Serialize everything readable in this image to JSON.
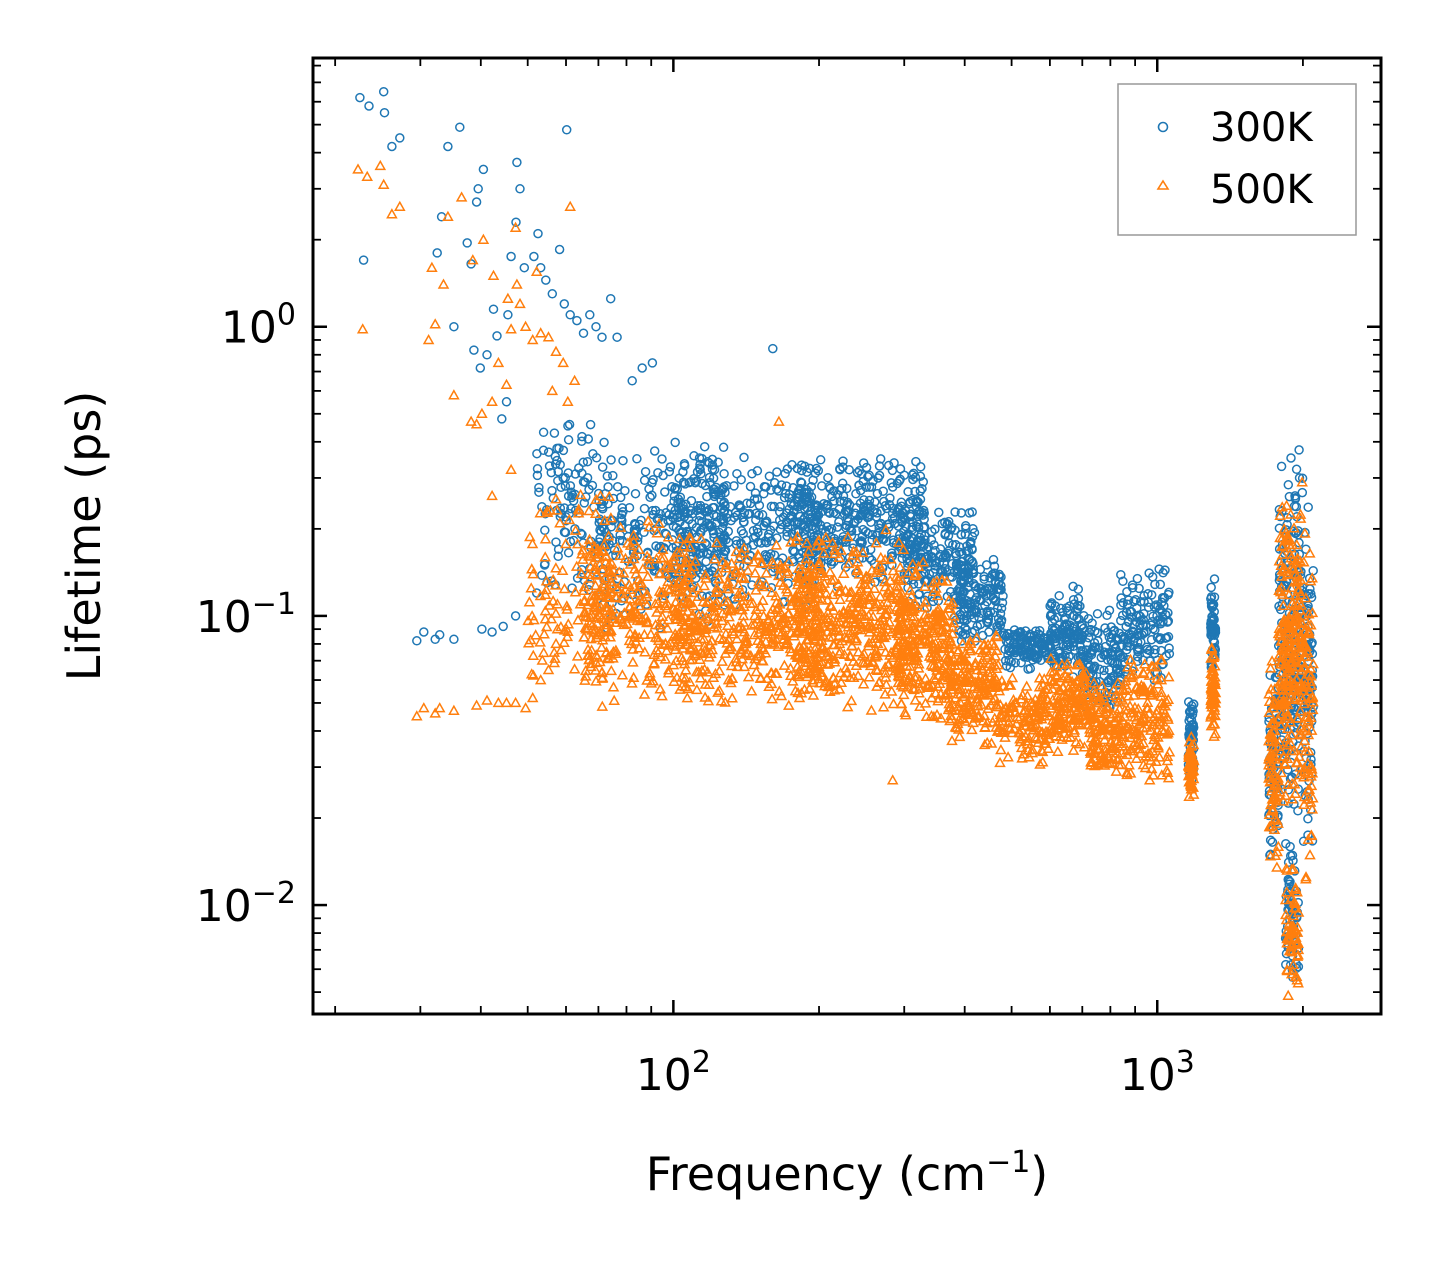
{
  "chart_data": {
    "type": "scatter",
    "title": "",
    "xlabel": "Frequency (cm",
    "xlabel_sup": "−1",
    "xlabel_tail": ")",
    "ylabel": "Lifetime (ps)",
    "xscale": "log",
    "yscale": "log",
    "xlim": [
      18,
      2900
    ],
    "ylim": [
      0.0042,
      8.5
    ],
    "x_ticks": [
      {
        "value": 100,
        "base": "10",
        "exp": "2"
      },
      {
        "value": 1000,
        "base": "10",
        "exp": "3"
      }
    ],
    "y_ticks": [
      {
        "value": 1,
        "base": "10",
        "exp": "0"
      },
      {
        "value": 0.1,
        "base": "10",
        "exp": "−1"
      },
      {
        "value": 0.01,
        "base": "10",
        "exp": "−2"
      }
    ],
    "legend_position": "top-right",
    "series": [
      {
        "name": "300K",
        "marker": "circle",
        "color": "#1f77b4",
        "outliers": [
          [
            22.5,
            6.2
          ],
          [
            23.5,
            5.8
          ],
          [
            25.2,
            6.5
          ],
          [
            25.3,
            5.5
          ],
          [
            26.2,
            4.2
          ],
          [
            27.2,
            4.5
          ],
          [
            22.9,
            1.7
          ],
          [
            29.5,
            0.082
          ],
          [
            30.5,
            0.088
          ],
          [
            32.2,
            0.083
          ],
          [
            32.9,
            0.086
          ],
          [
            35.2,
            0.083
          ],
          [
            34.2,
            4.2
          ],
          [
            36.2,
            4.9
          ],
          [
            33.2,
            2.4
          ],
          [
            32.5,
            1.8
          ],
          [
            35.2,
            1.0
          ],
          [
            37.5,
            1.95
          ],
          [
            38.2,
            1.65
          ],
          [
            39.5,
            3.0
          ],
          [
            40.5,
            3.5
          ],
          [
            39.2,
            2.7
          ],
          [
            42.5,
            1.15
          ],
          [
            43.2,
            0.93
          ],
          [
            38.7,
            0.83
          ],
          [
            41.2,
            0.8
          ],
          [
            39.9,
            0.72
          ],
          [
            45.5,
            1.1
          ],
          [
            46.2,
            1.75
          ],
          [
            47.5,
            3.7
          ],
          [
            48.2,
            3.0
          ],
          [
            47.3,
            2.3
          ],
          [
            44.2,
            0.48
          ],
          [
            45.2,
            0.55
          ],
          [
            49.2,
            1.6
          ],
          [
            51.5,
            1.75
          ],
          [
            52.5,
            2.1
          ],
          [
            53.2,
            1.6
          ],
          [
            54.5,
            1.45
          ],
          [
            56.2,
            1.3
          ],
          [
            58.2,
            1.85
          ],
          [
            60.2,
            4.8
          ],
          [
            59.5,
            1.2
          ],
          [
            61.2,
            1.1
          ],
          [
            63.2,
            1.05
          ],
          [
            65.2,
            0.95
          ],
          [
            67.2,
            1.1
          ],
          [
            69.2,
            1.0
          ],
          [
            71.2,
            0.92
          ],
          [
            74.2,
            1.25
          ],
          [
            76.5,
            0.92
          ],
          [
            82.2,
            0.65
          ],
          [
            86.2,
            0.72
          ],
          [
            90.5,
            0.75
          ],
          [
            160.5,
            0.84
          ],
          [
            40.2,
            0.09
          ],
          [
            42.2,
            0.088
          ],
          [
            44.5,
            0.092
          ],
          [
            47.2,
            0.1
          ],
          [
            52.2,
            0.12
          ],
          [
            54.2,
            0.15
          ],
          [
            57.2,
            0.18
          ],
          [
            62.2,
            0.25
          ],
          [
            66.5,
            0.3
          ]
        ],
        "bands": [
          {
            "x": [
              52,
              72
            ],
            "y": [
              0.1,
              0.55
            ],
            "n": 110
          },
          {
            "x": [
              70,
              130
            ],
            "y": [
              0.09,
              0.42
            ],
            "n": 260
          },
          {
            "x": [
              100,
              200
            ],
            "y": [
              0.1,
              0.38
            ],
            "n": 340
          },
          {
            "x": [
              180,
              330
            ],
            "y": [
              0.12,
              0.37
            ],
            "n": 380
          },
          {
            "x": [
              300,
              420
            ],
            "y": [
              0.1,
              0.25
            ],
            "n": 190
          },
          {
            "x": [
              380,
              480
            ],
            "y": [
              0.08,
              0.16
            ],
            "n": 140
          },
          {
            "x": [
              480,
              620
            ],
            "y": [
              0.065,
              0.095
            ],
            "n": 120
          },
          {
            "x": [
              600,
              700
            ],
            "y": [
              0.06,
              0.13
            ],
            "n": 110
          },
          {
            "x": [
              700,
              840
            ],
            "y": [
              0.045,
              0.11
            ],
            "n": 130
          },
          {
            "x": [
              840,
              1060
            ],
            "y": [
              0.055,
              0.16
            ],
            "n": 140
          },
          {
            "x": [
              1160,
              1190
            ],
            "y": [
              0.025,
              0.055
            ],
            "n": 60
          },
          {
            "x": [
              1290,
              1320
            ],
            "y": [
              0.06,
              0.14
            ],
            "n": 60
          },
          {
            "x": [
              1700,
              1780
            ],
            "y": [
              0.012,
              0.075
            ],
            "n": 80
          },
          {
            "x": [
              1780,
              2000
            ],
            "y": [
              0.02,
              0.42
            ],
            "n": 220
          },
          {
            "x": [
              1840,
              1960
            ],
            "y": [
              0.005,
              0.017
            ],
            "n": 60
          },
          {
            "x": [
              2000,
              2100
            ],
            "y": [
              0.012,
              0.27
            ],
            "n": 80
          }
        ]
      },
      {
        "name": "500K",
        "marker": "triangle",
        "color": "#ff7f0e",
        "outliers": [
          [
            22.3,
            3.5
          ],
          [
            23.3,
            3.3
          ],
          [
            24.8,
            3.6
          ],
          [
            25.2,
            3.1
          ],
          [
            26.2,
            2.45
          ],
          [
            27.2,
            2.6
          ],
          [
            22.8,
            0.98
          ],
          [
            29.5,
            0.045
          ],
          [
            30.5,
            0.048
          ],
          [
            32.2,
            0.046
          ],
          [
            32.9,
            0.048
          ],
          [
            35.2,
            0.047
          ],
          [
            31.2,
            0.9
          ],
          [
            32.2,
            1.02
          ],
          [
            33.5,
            1.4
          ],
          [
            34.2,
            2.4
          ],
          [
            36.5,
            2.8
          ],
          [
            31.7,
            1.6
          ],
          [
            35.2,
            0.58
          ],
          [
            38.2,
            0.47
          ],
          [
            39.2,
            0.46
          ],
          [
            40.2,
            0.5
          ],
          [
            42.2,
            0.55
          ],
          [
            43.5,
            0.75
          ],
          [
            45.2,
            0.63
          ],
          [
            46.2,
            0.98
          ],
          [
            47.5,
            1.4
          ],
          [
            48.2,
            1.2
          ],
          [
            49.5,
            1.0
          ],
          [
            51.2,
            0.9
          ],
          [
            53.2,
            0.95
          ],
          [
            55.2,
            0.92
          ],
          [
            57.2,
            0.82
          ],
          [
            59.2,
            0.75
          ],
          [
            61.2,
            2.6
          ],
          [
            62.5,
            0.65
          ],
          [
            38.5,
            1.7
          ],
          [
            40.5,
            2.0
          ],
          [
            42.5,
            1.5
          ],
          [
            45.5,
            1.25
          ],
          [
            47.2,
            2.2
          ],
          [
            52.2,
            1.55
          ],
          [
            56.2,
            0.6
          ],
          [
            60.5,
            0.55
          ],
          [
            165.2,
            0.47
          ],
          [
            42.2,
            0.26
          ],
          [
            46.2,
            0.32
          ],
          [
            39.2,
            0.049
          ],
          [
            41.2,
            0.051
          ],
          [
            43.5,
            0.05
          ],
          [
            45.2,
            0.05
          ],
          [
            47.2,
            0.05
          ],
          [
            49.5,
            0.048
          ],
          [
            51.2,
            0.052
          ],
          [
            53.2,
            0.06
          ],
          [
            55.2,
            0.065
          ],
          [
            284,
            0.027
          ]
        ],
        "bands": [
          {
            "x": [
              50,
              75
            ],
            "y": [
              0.045,
              0.3
            ],
            "n": 140
          },
          {
            "x": [
              65,
              110
            ],
            "y": [
              0.05,
              0.22
            ],
            "n": 300
          },
          {
            "x": [
              100,
              200
            ],
            "y": [
              0.045,
              0.2
            ],
            "n": 450
          },
          {
            "x": [
              180,
              300
            ],
            "y": [
              0.045,
              0.2
            ],
            "n": 420
          },
          {
            "x": [
              290,
              380
            ],
            "y": [
              0.04,
              0.16
            ],
            "n": 260
          },
          {
            "x": [
              370,
              470
            ],
            "y": [
              0.035,
              0.09
            ],
            "n": 200
          },
          {
            "x": [
              470,
              600
            ],
            "y": [
              0.03,
              0.065
            ],
            "n": 150
          },
          {
            "x": [
              600,
              720
            ],
            "y": [
              0.033,
              0.075
            ],
            "n": 150
          },
          {
            "x": [
              720,
              850
            ],
            "y": [
              0.026,
              0.06
            ],
            "n": 150
          },
          {
            "x": [
              850,
              1060
            ],
            "y": [
              0.026,
              0.08
            ],
            "n": 160
          },
          {
            "x": [
              1160,
              1190
            ],
            "y": [
              0.023,
              0.04
            ],
            "n": 60
          },
          {
            "x": [
              1290,
              1320
            ],
            "y": [
              0.035,
              0.08
            ],
            "n": 60
          },
          {
            "x": [
              1700,
              1780
            ],
            "y": [
              0.012,
              0.075
            ],
            "n": 80
          },
          {
            "x": [
              1780,
              2000
            ],
            "y": [
              0.02,
              0.3
            ],
            "n": 240
          },
          {
            "x": [
              1840,
              1960
            ],
            "y": [
              0.0048,
              0.015
            ],
            "n": 60
          },
          {
            "x": [
              2000,
              2100
            ],
            "y": [
              0.011,
              0.24
            ],
            "n": 80
          }
        ]
      }
    ]
  }
}
